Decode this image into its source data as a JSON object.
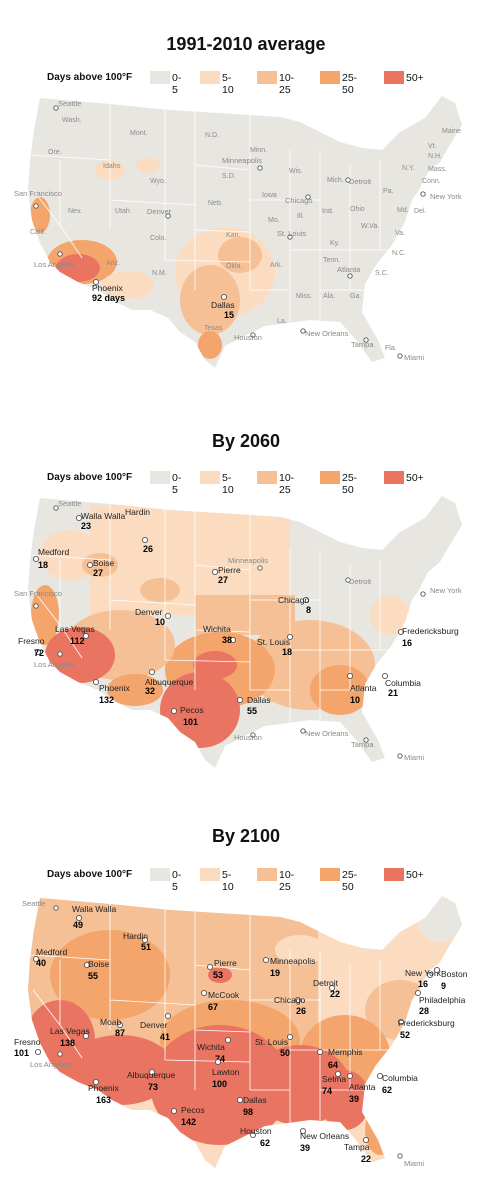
{
  "legend": {
    "label": "Days above 100°F",
    "bins": [
      {
        "label": "0-5",
        "color": "#e8e6e1"
      },
      {
        "label": "5-10",
        "color": "#fbdcc0"
      },
      {
        "label": "10-25",
        "color": "#f6c096"
      },
      {
        "label": "25-50",
        "color": "#f3a56c"
      },
      {
        "label": "50+",
        "color": "#ea7462"
      }
    ]
  },
  "colors": {
    "land": "#e8e6e1",
    "border": "#ffffff"
  },
  "panels": [
    {
      "title": "1991-2010 average",
      "highlighted_cities": [
        {
          "name": "Phoenix",
          "value": "92 days"
        },
        {
          "name": "Dallas",
          "value": "15"
        }
      ],
      "gray_cities": [
        "Seattle",
        "San Francisco",
        "Los Angeles",
        "Denver",
        "Minneapolis",
        "Chicago",
        "Detroit",
        "St. Louis",
        "Atlanta",
        "New Orleans",
        "Houston",
        "Tampa",
        "Miami",
        "New York"
      ],
      "states": [
        "Wash.",
        "Ore.",
        "Idaho",
        "Mont.",
        "Wyo.",
        "Nev.",
        "Utah",
        "Calif.",
        "Ariz.",
        "Colo.",
        "N.M.",
        "N.D.",
        "S.D.",
        "Neb.",
        "Kan.",
        "Okla.",
        "Texas",
        "Minn.",
        "Iowa",
        "Mo.",
        "Ark.",
        "La.",
        "Wis.",
        "Ill.",
        "Mich.",
        "Ind.",
        "Ohio",
        "Ky.",
        "Tenn.",
        "Miss.",
        "Ala.",
        "Ga.",
        "Fla.",
        "S.C.",
        "N.C.",
        "Va.",
        "W.Va.",
        "Pa.",
        "N.Y.",
        "Vt.",
        "N.H.",
        "Maine",
        "Mass.",
        "Conn.",
        "Md.",
        "Del."
      ]
    },
    {
      "title": "By 2060",
      "highlighted_cities": [
        {
          "name": "Walla Walla",
          "value": "23"
        },
        {
          "name": "Hardin",
          "value": "26"
        },
        {
          "name": "Medford",
          "value": "18"
        },
        {
          "name": "Boise",
          "value": "27"
        },
        {
          "name": "Pierre",
          "value": "27"
        },
        {
          "name": "Chicago",
          "value": "8"
        },
        {
          "name": "Denver",
          "value": "10"
        },
        {
          "name": "Las Vegas",
          "value": "112"
        },
        {
          "name": "Wichita",
          "value": "38"
        },
        {
          "name": "Fresno",
          "value": "72"
        },
        {
          "name": "St. Louis",
          "value": "18"
        },
        {
          "name": "Fredericksburg",
          "value": "16"
        },
        {
          "name": "Albuquerque",
          "value": "32"
        },
        {
          "name": "Phoenix",
          "value": "132"
        },
        {
          "name": "Atlanta",
          "value": "10"
        },
        {
          "name": "Columbia",
          "value": "21"
        },
        {
          "name": "Dallas",
          "value": "55"
        },
        {
          "name": "Pecos",
          "value": "101"
        }
      ],
      "gray_cities": [
        "Seattle",
        "San Francisco",
        "Los Angeles",
        "Minneapolis",
        "Detroit",
        "New York",
        "New Orleans",
        "Houston",
        "Tampa",
        "Miami"
      ]
    },
    {
      "title": "By 2100",
      "highlighted_cities": [
        {
          "name": "Walla Walla",
          "value": "49"
        },
        {
          "name": "Hardin",
          "value": "51"
        },
        {
          "name": "Medford",
          "value": "40"
        },
        {
          "name": "Boise",
          "value": "55"
        },
        {
          "name": "Pierre",
          "value": "53"
        },
        {
          "name": "Minneapolis",
          "value": "19"
        },
        {
          "name": "McCook",
          "value": "67"
        },
        {
          "name": "Detroit",
          "value": "22"
        },
        {
          "name": "New York",
          "value": "16"
        },
        {
          "name": "Boston",
          "value": "9"
        },
        {
          "name": "Chicago",
          "value": "26"
        },
        {
          "name": "Philadelphia",
          "value": "28"
        },
        {
          "name": "Fredericksburg",
          "value": "52"
        },
        {
          "name": "Las Vegas",
          "value": "138"
        },
        {
          "name": "Moab",
          "value": "87"
        },
        {
          "name": "Denver",
          "value": "41"
        },
        {
          "name": "Fresno",
          "value": "101"
        },
        {
          "name": "Wichita",
          "value": "74"
        },
        {
          "name": "St. Louis",
          "value": "50"
        },
        {
          "name": "Memphis",
          "value": "64"
        },
        {
          "name": "Lawton",
          "value": "100"
        },
        {
          "name": "Albuquerque",
          "value": "73"
        },
        {
          "name": "Selma",
          "value": "74"
        },
        {
          "name": "Atlanta",
          "value": "39"
        },
        {
          "name": "Columbia",
          "value": "62"
        },
        {
          "name": "Phoenix",
          "value": "163"
        },
        {
          "name": "Dallas",
          "value": "98"
        },
        {
          "name": "Pecos",
          "value": "142"
        },
        {
          "name": "Houston",
          "value": "62"
        },
        {
          "name": "New Orleans",
          "value": "39"
        },
        {
          "name": "Tampa",
          "value": "22"
        }
      ],
      "gray_cities": [
        "Seattle",
        "Los Angeles",
        "Miami"
      ]
    }
  ]
}
